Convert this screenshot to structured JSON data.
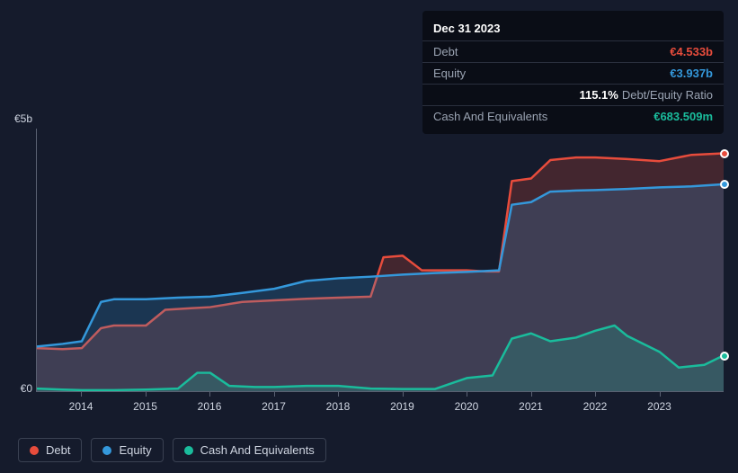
{
  "tooltip": {
    "date": "Dec 31 2023",
    "rows": [
      {
        "label": "Debt",
        "value": "€4.533b",
        "color": "#e74c3c",
        "extra": ""
      },
      {
        "label": "Equity",
        "value": "€3.937b",
        "color": "#3498db",
        "extra": ""
      },
      {
        "label": "",
        "value": "115.1%",
        "color": "#ffffff",
        "extra": "Debt/Equity Ratio"
      },
      {
        "label": "Cash And Equivalents",
        "value": "€683.509m",
        "color": "#1abc9c",
        "extra": ""
      }
    ]
  },
  "chart": {
    "type": "area",
    "background_color": "#151b2c",
    "axis_color": "#5a6172",
    "tick_font_color": "#cfd5e1",
    "tick_fontsize": 12,
    "x_range": [
      2013.3,
      2024.0
    ],
    "x_ticks": [
      2014,
      2015,
      2016,
      2017,
      2018,
      2019,
      2020,
      2021,
      2022,
      2023
    ],
    "y_range": [
      0,
      5
    ],
    "y_ticks": [
      {
        "v": 0,
        "label": "€0"
      },
      {
        "v": 5,
        "label": "€5b"
      }
    ],
    "series": [
      {
        "name": "Debt",
        "color": "#e74c3c",
        "fill": "rgba(231,76,60,0.22)",
        "points": [
          [
            2013.3,
            0.82
          ],
          [
            2013.7,
            0.8
          ],
          [
            2014.0,
            0.82
          ],
          [
            2014.3,
            1.2
          ],
          [
            2014.5,
            1.25
          ],
          [
            2015.0,
            1.25
          ],
          [
            2015.3,
            1.55
          ],
          [
            2015.7,
            1.58
          ],
          [
            2016.0,
            1.6
          ],
          [
            2016.5,
            1.7
          ],
          [
            2017.0,
            1.73
          ],
          [
            2017.5,
            1.76
          ],
          [
            2018.0,
            1.78
          ],
          [
            2018.5,
            1.8
          ],
          [
            2018.7,
            2.55
          ],
          [
            2019.0,
            2.58
          ],
          [
            2019.3,
            2.3
          ],
          [
            2019.7,
            2.3
          ],
          [
            2020.0,
            2.3
          ],
          [
            2020.3,
            2.28
          ],
          [
            2020.5,
            2.28
          ],
          [
            2020.7,
            4.0
          ],
          [
            2021.0,
            4.05
          ],
          [
            2021.3,
            4.4
          ],
          [
            2021.7,
            4.45
          ],
          [
            2022.0,
            4.45
          ],
          [
            2022.5,
            4.42
          ],
          [
            2023.0,
            4.38
          ],
          [
            2023.5,
            4.5
          ],
          [
            2024.0,
            4.53
          ]
        ]
      },
      {
        "name": "Equity",
        "color": "#3498db",
        "fill": "rgba(52,152,219,0.22)",
        "points": [
          [
            2013.3,
            0.85
          ],
          [
            2013.7,
            0.9
          ],
          [
            2014.0,
            0.95
          ],
          [
            2014.3,
            1.7
          ],
          [
            2014.5,
            1.75
          ],
          [
            2015.0,
            1.75
          ],
          [
            2015.5,
            1.78
          ],
          [
            2016.0,
            1.8
          ],
          [
            2016.5,
            1.87
          ],
          [
            2017.0,
            1.95
          ],
          [
            2017.5,
            2.1
          ],
          [
            2018.0,
            2.15
          ],
          [
            2018.5,
            2.18
          ],
          [
            2019.0,
            2.22
          ],
          [
            2019.5,
            2.25
          ],
          [
            2020.0,
            2.27
          ],
          [
            2020.5,
            2.3
          ],
          [
            2020.7,
            3.55
          ],
          [
            2021.0,
            3.6
          ],
          [
            2021.3,
            3.8
          ],
          [
            2021.7,
            3.82
          ],
          [
            2022.0,
            3.83
          ],
          [
            2022.5,
            3.85
          ],
          [
            2023.0,
            3.88
          ],
          [
            2023.5,
            3.9
          ],
          [
            2024.0,
            3.94
          ]
        ]
      },
      {
        "name": "Cash And Equivalents",
        "color": "#1abc9c",
        "fill": "rgba(26,188,156,0.22)",
        "points": [
          [
            2013.3,
            0.05
          ],
          [
            2013.7,
            0.03
          ],
          [
            2014.0,
            0.02
          ],
          [
            2014.5,
            0.02
          ],
          [
            2015.0,
            0.03
          ],
          [
            2015.5,
            0.05
          ],
          [
            2015.8,
            0.35
          ],
          [
            2016.0,
            0.35
          ],
          [
            2016.3,
            0.1
          ],
          [
            2016.7,
            0.08
          ],
          [
            2017.0,
            0.08
          ],
          [
            2017.5,
            0.1
          ],
          [
            2018.0,
            0.1
          ],
          [
            2018.5,
            0.05
          ],
          [
            2019.0,
            0.04
          ],
          [
            2019.5,
            0.04
          ],
          [
            2020.0,
            0.25
          ],
          [
            2020.4,
            0.3
          ],
          [
            2020.7,
            1.0
          ],
          [
            2021.0,
            1.1
          ],
          [
            2021.3,
            0.95
          ],
          [
            2021.7,
            1.02
          ],
          [
            2022.0,
            1.15
          ],
          [
            2022.3,
            1.25
          ],
          [
            2022.5,
            1.05
          ],
          [
            2023.0,
            0.75
          ],
          [
            2023.3,
            0.45
          ],
          [
            2023.7,
            0.5
          ],
          [
            2024.0,
            0.68
          ]
        ]
      }
    ]
  },
  "legend": {
    "items": [
      {
        "label": "Debt",
        "color": "#e74c3c"
      },
      {
        "label": "Equity",
        "color": "#3498db"
      },
      {
        "label": "Cash And Equivalents",
        "color": "#1abc9c"
      }
    ]
  }
}
